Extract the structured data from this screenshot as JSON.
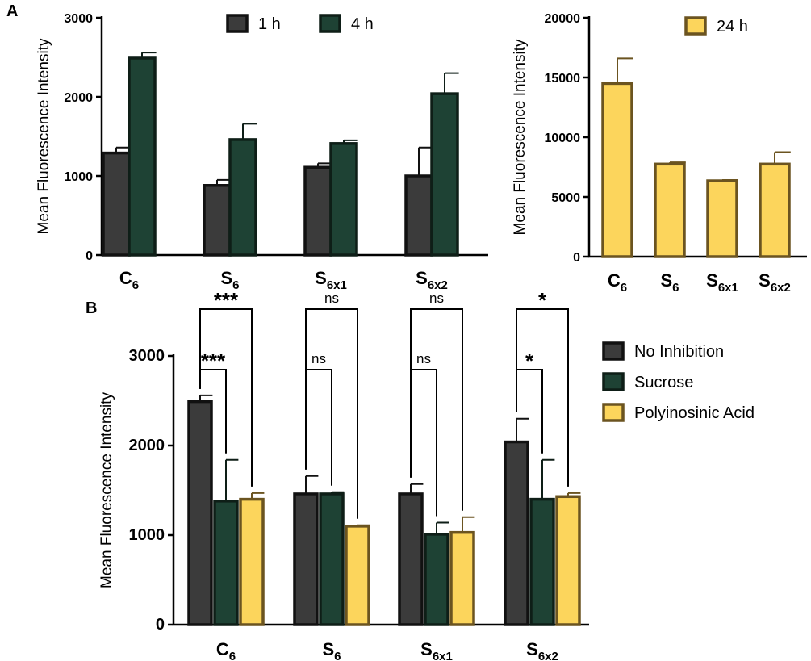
{
  "panel_labels": [
    "A",
    "B"
  ],
  "colors": {
    "No Inhibition": {
      "fill": "#3b3b3b",
      "stroke": "#111111"
    },
    "Sucrose": {
      "fill": "#1e4234",
      "stroke": "#0e1e17"
    },
    "Polyinosinic Acid": {
      "fill": "#fcd55c",
      "stroke": "#6b5420"
    },
    "1 h": {
      "fill": "#3b3b3b",
      "stroke": "#111111"
    },
    "4 h": {
      "fill": "#1e4234",
      "stroke": "#0e1e17"
    },
    "24 h": {
      "fill": "#fcd55c",
      "stroke": "#6b5420"
    }
  },
  "chart_data": [
    {
      "id": "A-left",
      "type": "bar",
      "panel": "A",
      "ylabel": "Mean Fluorescence Intensity",
      "ylim": [
        0,
        3000
      ],
      "yticks": [
        0,
        1000,
        2000,
        3000
      ],
      "categories": [
        {
          "main": "C",
          "sub": "6"
        },
        {
          "main": "S",
          "sub": "6"
        },
        {
          "main": "S",
          "sub": "6x1"
        },
        {
          "main": "S",
          "sub": "6x2"
        }
      ],
      "legend_position": "top",
      "series": [
        {
          "name": "1 h",
          "values": [
            1290,
            880,
            1110,
            1000
          ],
          "errors": [
            70,
            70,
            50,
            360
          ]
        },
        {
          "name": "4 h",
          "values": [
            2490,
            1460,
            1410,
            2040
          ],
          "errors": [
            70,
            200,
            40,
            260
          ]
        }
      ]
    },
    {
      "id": "A-right",
      "type": "bar",
      "panel": "A",
      "ylabel": "Mean Fluorescence Intensity",
      "ylim": [
        0,
        20000
      ],
      "yticks": [
        0,
        5000,
        10000,
        15000,
        20000
      ],
      "categories": [
        {
          "main": "C",
          "sub": "6"
        },
        {
          "main": "S",
          "sub": "6"
        },
        {
          "main": "S",
          "sub": "6x1"
        },
        {
          "main": "S",
          "sub": "6x2"
        }
      ],
      "legend_position": "top-right",
      "series": [
        {
          "name": "24 h",
          "values": [
            14500,
            7750,
            6350,
            7750
          ],
          "errors": [
            2100,
            150,
            70,
            1000
          ]
        }
      ]
    },
    {
      "id": "B",
      "type": "bar",
      "panel": "B",
      "ylabel": "Mean Fluorescence Intensity",
      "ylim": [
        0,
        3000
      ],
      "yticks": [
        0,
        1000,
        2000,
        3000
      ],
      "categories": [
        {
          "main": "C",
          "sub": "6"
        },
        {
          "main": "S",
          "sub": "6"
        },
        {
          "main": "S",
          "sub": "6x1"
        },
        {
          "main": "S",
          "sub": "6x2"
        }
      ],
      "legend_position": "right",
      "series": [
        {
          "name": "No Inhibition",
          "values": [
            2490,
            1460,
            1460,
            2040
          ],
          "errors": [
            70,
            200,
            110,
            260
          ]
        },
        {
          "name": "Sucrose",
          "values": [
            1380,
            1460,
            1010,
            1400
          ],
          "errors": [
            460,
            20,
            130,
            440
          ]
        },
        {
          "name": "Polyinosinic Acid",
          "values": [
            1400,
            1100,
            1030,
            1430
          ],
          "errors": [
            70,
            10,
            170,
            40
          ]
        }
      ],
      "significance": [
        {
          "category": 0,
          "from": "No Inhibition",
          "to": "Sucrose",
          "label": "***"
        },
        {
          "category": 0,
          "from": "No Inhibition",
          "to": "Polyinosinic Acid",
          "label": "***"
        },
        {
          "category": 1,
          "from": "No Inhibition",
          "to": "Sucrose",
          "label": "ns"
        },
        {
          "category": 1,
          "from": "No Inhibition",
          "to": "Polyinosinic Acid",
          "label": "ns"
        },
        {
          "category": 2,
          "from": "No Inhibition",
          "to": "Sucrose",
          "label": "ns"
        },
        {
          "category": 2,
          "from": "No Inhibition",
          "to": "Polyinosinic Acid",
          "label": "ns"
        },
        {
          "category": 3,
          "from": "No Inhibition",
          "to": "Sucrose",
          "label": "*"
        },
        {
          "category": 3,
          "from": "No Inhibition",
          "to": "Polyinosinic Acid",
          "label": "*"
        }
      ]
    }
  ]
}
